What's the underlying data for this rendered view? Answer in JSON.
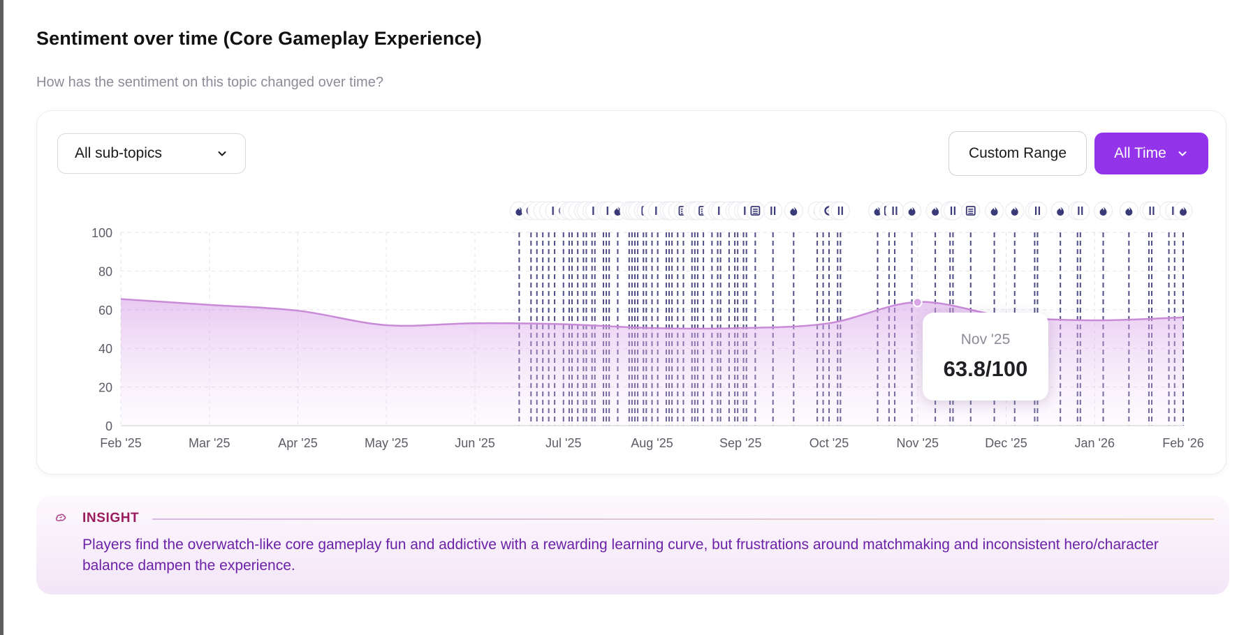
{
  "header": {
    "title": "Sentiment over time (Core Gameplay Experience)",
    "subtitle": "How has the sentiment on this topic changed over time?"
  },
  "controls": {
    "subtopic_select": "All sub-topics",
    "custom_range_label": "Custom Range",
    "all_time_label": "All Time"
  },
  "tooltip": {
    "label": "Nov '25",
    "value": "63.8/100"
  },
  "insight": {
    "label": "INSIGHT",
    "text": "Players find the overwatch-like core gameplay fun and addictive with a rewarding learning curve, but frustrations around matchmaking and inconsistent hero/character balance dampen the experience."
  },
  "colors": {
    "accent": "#9333ea",
    "line": "#c98ad8",
    "event_line": "#3b3a78",
    "insight_text": "#6b21a8",
    "insight_label": "#9b1c5c"
  },
  "chart_data": {
    "type": "area",
    "x": [
      "Feb '25",
      "Mar '25",
      "Apr '25",
      "May '25",
      "Jun '25",
      "Jul '25",
      "Aug '25",
      "Sep '25",
      "Oct '25",
      "Nov '25",
      "Dec '25",
      "Jan '26",
      "Feb '26"
    ],
    "values": [
      65.5,
      62.5,
      59.5,
      52,
      53,
      52.5,
      50.5,
      50.5,
      53,
      64,
      56.5,
      54.5,
      56
    ],
    "ylim": [
      0,
      100
    ],
    "yticks": [
      0,
      20,
      40,
      60,
      80,
      100
    ],
    "grid": true,
    "highlight": {
      "x": "Nov '25",
      "value": 63.8
    },
    "events": [
      {
        "date": "2025-06-16",
        "icon": "flame-icon"
      },
      {
        "date": "2025-06-20",
        "icon": "circle-icon"
      },
      {
        "date": "2025-06-22",
        "icon": "bar-icon"
      },
      {
        "date": "2025-06-24",
        "icon": "bar-icon"
      },
      {
        "date": "2025-06-26",
        "icon": "bar-icon"
      },
      {
        "date": "2025-06-28",
        "icon": "bar-icon"
      },
      {
        "date": "2025-07-01",
        "icon": "circle-icon"
      },
      {
        "date": "2025-07-03",
        "icon": "bar-icon"
      },
      {
        "date": "2025-07-04",
        "icon": "bar-icon"
      },
      {
        "date": "2025-07-06",
        "icon": "bar-icon"
      },
      {
        "date": "2025-07-08",
        "icon": "circle-icon"
      },
      {
        "date": "2025-07-09",
        "icon": "bar-icon"
      },
      {
        "date": "2025-07-11",
        "icon": "bar-icon"
      },
      {
        "date": "2025-07-12",
        "icon": "bar-icon"
      },
      {
        "date": "2025-07-15",
        "icon": "bar-icon"
      },
      {
        "date": "2025-07-16",
        "icon": "bar-icon"
      },
      {
        "date": "2025-07-17",
        "icon": "bar-icon"
      },
      {
        "date": "2025-07-20",
        "icon": "flame-icon"
      },
      {
        "date": "2025-07-24",
        "icon": "bar-icon"
      },
      {
        "date": "2025-07-25",
        "icon": "bar-icon"
      },
      {
        "date": "2025-07-26",
        "icon": "bar-icon"
      },
      {
        "date": "2025-07-27",
        "icon": "bar-icon"
      },
      {
        "date": "2025-07-29",
        "icon": "bar-icon"
      },
      {
        "date": "2025-07-30",
        "icon": "list-icon"
      },
      {
        "date": "2025-08-01",
        "icon": "bar-icon"
      },
      {
        "date": "2025-08-03",
        "icon": "bar-icon"
      },
      {
        "date": "2025-08-06",
        "icon": "bar-icon"
      },
      {
        "date": "2025-08-07",
        "icon": "bar-icon"
      },
      {
        "date": "2025-08-08",
        "icon": "bar-icon"
      },
      {
        "date": "2025-08-10",
        "icon": "bar-icon"
      },
      {
        "date": "2025-08-12",
        "icon": "list-icon"
      },
      {
        "date": "2025-08-15",
        "icon": "bar-icon"
      },
      {
        "date": "2025-08-16",
        "icon": "bar-icon"
      },
      {
        "date": "2025-08-17",
        "icon": "bar-icon"
      },
      {
        "date": "2025-08-19",
        "icon": "list-icon"
      },
      {
        "date": "2025-08-22",
        "icon": "bar-icon"
      },
      {
        "date": "2025-08-24",
        "icon": "circle-icon"
      },
      {
        "date": "2025-08-25",
        "icon": "bar-icon"
      },
      {
        "date": "2025-08-28",
        "icon": "flame-icon"
      },
      {
        "date": "2025-08-30",
        "icon": "bar-icon"
      },
      {
        "date": "2025-08-31",
        "icon": "bar-icon"
      },
      {
        "date": "2025-09-02",
        "icon": "bar-icon"
      },
      {
        "date": "2025-09-03",
        "icon": "bar-icon"
      },
      {
        "date": "2025-09-06",
        "icon": "list-icon"
      },
      {
        "date": "2025-09-12",
        "icon": "bar-icon"
      },
      {
        "date": "2025-09-19",
        "icon": "flame-icon"
      },
      {
        "date": "2025-09-27",
        "icon": "flame-icon"
      },
      {
        "date": "2025-09-29",
        "icon": "bar-icon"
      },
      {
        "date": "2025-10-01",
        "icon": "circle-icon"
      },
      {
        "date": "2025-10-04",
        "icon": "bar-icon"
      },
      {
        "date": "2025-10-05",
        "icon": "bar-icon"
      },
      {
        "date": "2025-10-18",
        "icon": "flame-icon"
      },
      {
        "date": "2025-10-22",
        "icon": "list-icon"
      },
      {
        "date": "2025-10-24",
        "icon": "bar-icon"
      },
      {
        "date": "2025-10-30",
        "icon": "flame-icon"
      },
      {
        "date": "2025-11-07",
        "icon": "flame-icon"
      },
      {
        "date": "2025-11-12",
        "icon": "list-icon"
      },
      {
        "date": "2025-11-13",
        "icon": "bar-icon"
      },
      {
        "date": "2025-11-19",
        "icon": "list-icon"
      },
      {
        "date": "2025-11-27",
        "icon": "flame-icon"
      },
      {
        "date": "2025-12-04",
        "icon": "flame-icon"
      },
      {
        "date": "2025-12-11",
        "icon": "list-icon"
      },
      {
        "date": "2025-12-12",
        "icon": "bar-icon"
      },
      {
        "date": "2025-12-20",
        "icon": "flame-icon"
      },
      {
        "date": "2025-12-26",
        "icon": "list-icon"
      },
      {
        "date": "2025-12-27",
        "icon": "bar-icon"
      },
      {
        "date": "2026-01-04",
        "icon": "flame-icon"
      },
      {
        "date": "2026-01-13",
        "icon": "flame-icon"
      },
      {
        "date": "2026-01-20",
        "icon": "circle-icon"
      },
      {
        "date": "2026-01-21",
        "icon": "bar-icon"
      },
      {
        "date": "2026-01-27",
        "icon": "flame-icon"
      },
      {
        "date": "2026-01-29",
        "icon": "bar-icon"
      },
      {
        "date": "2026-02-01",
        "icon": "flame-icon"
      }
    ]
  }
}
